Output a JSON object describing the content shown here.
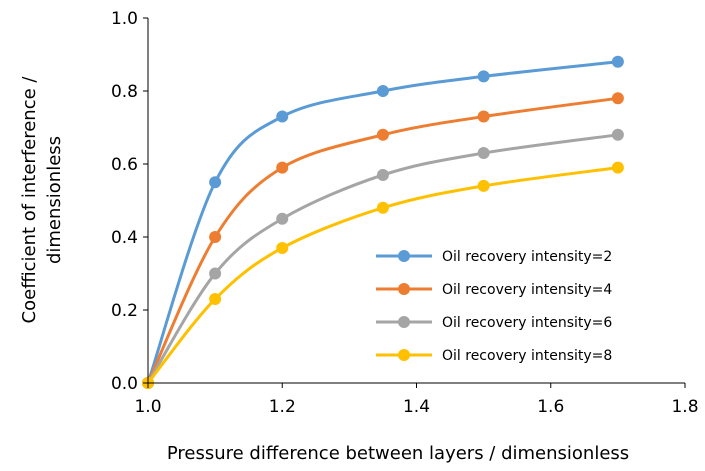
{
  "chart_data": {
    "type": "line",
    "title": "",
    "xlabel": "Pressure difference between layers / dimensionless",
    "ylabel_line1": "Coefficient of interference /",
    "ylabel_line2": "dimensionless",
    "xlim": [
      1.0,
      1.8
    ],
    "ylim": [
      0.0,
      1.0
    ],
    "x_ticks": [
      "1.0",
      "1.2",
      "1.4",
      "1.6",
      "1.8"
    ],
    "y_ticks": [
      "0.0",
      "0.2",
      "0.4",
      "0.6",
      "0.8",
      "1.0"
    ],
    "grid": false,
    "legend_position": "lower-right",
    "x": [
      1.0,
      1.1,
      1.2,
      1.35,
      1.5,
      1.7
    ],
    "series": [
      {
        "name": "Oil recovery intensity=2",
        "color": "#5B9BD5",
        "values": [
          0.0,
          0.55,
          0.73,
          0.8,
          0.84,
          0.88
        ]
      },
      {
        "name": "Oil recovery intensity=4",
        "color": "#ED7D31",
        "values": [
          0.0,
          0.4,
          0.59,
          0.68,
          0.73,
          0.78
        ]
      },
      {
        "name": "Oil recovery intensity=6",
        "color": "#A5A5A5",
        "values": [
          0.0,
          0.3,
          0.45,
          0.57,
          0.63,
          0.68
        ]
      },
      {
        "name": "Oil recovery intensity=8",
        "color": "#FFC000",
        "values": [
          0.0,
          0.23,
          0.37,
          0.48,
          0.54,
          0.59
        ]
      }
    ]
  }
}
